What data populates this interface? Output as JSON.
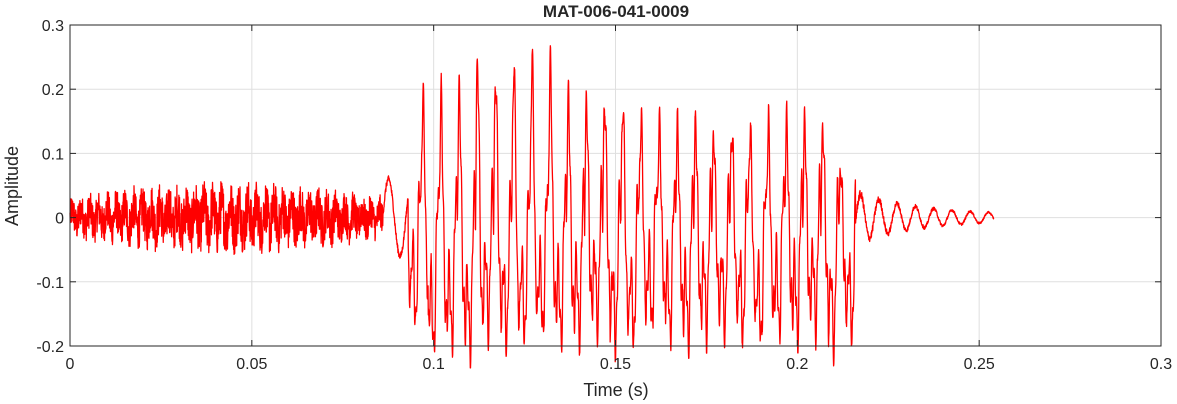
{
  "chart_data": {
    "type": "line",
    "title": "MAT-006-041-0009",
    "xlabel": "Time (s)",
    "ylabel": "Amplitude",
    "xlim": [
      0,
      0.3
    ],
    "ylim": [
      -0.2,
      0.3
    ],
    "xticks": [
      0,
      0.05,
      0.1,
      0.15,
      0.2,
      0.25,
      0.3
    ],
    "xtick_labels": [
      "0",
      "0.05",
      "0.1",
      "0.15",
      "0.2",
      "0.25",
      "0.3"
    ],
    "yticks": [
      -0.2,
      -0.1,
      0,
      0.1,
      0.2,
      0.3
    ],
    "ytick_labels": [
      "-0.2",
      "-0.1",
      "0",
      "0.1",
      "0.2",
      "0.3"
    ],
    "grid": true,
    "line_color": "#ff0000",
    "series": [
      {
        "x_start": 0,
        "x_end": 0.254,
        "segments": [
          {
            "t0": 0.0,
            "t1": 0.086,
            "kind": "noise",
            "amp": 0.05,
            "approx_range": [
              -0.065,
              0.07
            ]
          },
          {
            "t0": 0.086,
            "t1": 0.093,
            "kind": "transition",
            "approx_range": [
              -0.02,
              0.07
            ]
          },
          {
            "t0": 0.093,
            "t1": 0.216,
            "kind": "voiced",
            "approx_range": [
              -0.175,
              0.25
            ]
          },
          {
            "t0": 0.216,
            "t1": 0.254,
            "kind": "decay",
            "approx_range": [
              -0.03,
              0.04
            ]
          }
        ],
        "peaks_top": [
          {
            "x": 0.094,
            "y": 0.12
          },
          {
            "x": 0.099,
            "y": 0.19
          },
          {
            "x": 0.104,
            "y": 0.19
          },
          {
            "x": 0.109,
            "y": 0.2
          },
          {
            "x": 0.114,
            "y": 0.245
          },
          {
            "x": 0.119,
            "y": 0.22
          },
          {
            "x": 0.124,
            "y": 0.245
          },
          {
            "x": 0.129,
            "y": 0.25
          },
          {
            "x": 0.134,
            "y": 0.24
          },
          {
            "x": 0.139,
            "y": 0.19
          },
          {
            "x": 0.144,
            "y": 0.18
          },
          {
            "x": 0.149,
            "y": 0.18
          },
          {
            "x": 0.154,
            "y": 0.18
          },
          {
            "x": 0.159,
            "y": 0.16
          },
          {
            "x": 0.164,
            "y": 0.15
          },
          {
            "x": 0.169,
            "y": 0.14
          },
          {
            "x": 0.174,
            "y": 0.15
          },
          {
            "x": 0.179,
            "y": 0.13
          },
          {
            "x": 0.184,
            "y": 0.14
          },
          {
            "x": 0.189,
            "y": 0.14
          },
          {
            "x": 0.194,
            "y": 0.15
          },
          {
            "x": 0.199,
            "y": 0.15
          },
          {
            "x": 0.204,
            "y": 0.15
          },
          {
            "x": 0.209,
            "y": 0.14
          },
          {
            "x": 0.214,
            "y": 0.08
          }
        ],
        "peaks_bottom": [
          {
            "x": 0.096,
            "y": -0.12
          },
          {
            "x": 0.101,
            "y": -0.175
          },
          {
            "x": 0.106,
            "y": -0.16
          },
          {
            "x": 0.111,
            "y": -0.175
          },
          {
            "x": 0.116,
            "y": -0.13
          },
          {
            "x": 0.121,
            "y": -0.16
          },
          {
            "x": 0.126,
            "y": -0.15
          },
          {
            "x": 0.131,
            "y": -0.14
          },
          {
            "x": 0.136,
            "y": -0.155
          },
          {
            "x": 0.141,
            "y": -0.15
          },
          {
            "x": 0.146,
            "y": -0.13
          },
          {
            "x": 0.151,
            "y": -0.165
          },
          {
            "x": 0.156,
            "y": -0.16
          },
          {
            "x": 0.161,
            "y": -0.13
          },
          {
            "x": 0.166,
            "y": -0.15
          },
          {
            "x": 0.171,
            "y": -0.16
          },
          {
            "x": 0.176,
            "y": -0.14
          },
          {
            "x": 0.181,
            "y": -0.14
          },
          {
            "x": 0.186,
            "y": -0.15
          },
          {
            "x": 0.191,
            "y": -0.16
          },
          {
            "x": 0.196,
            "y": -0.14
          },
          {
            "x": 0.201,
            "y": -0.15
          },
          {
            "x": 0.206,
            "y": -0.13
          },
          {
            "x": 0.211,
            "y": -0.17
          },
          {
            "x": 0.215,
            "y": -0.15
          }
        ]
      }
    ]
  }
}
